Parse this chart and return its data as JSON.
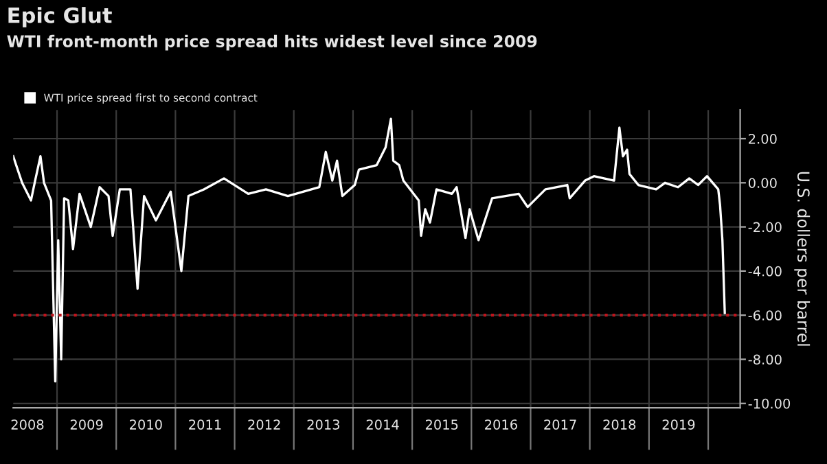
{
  "chart_data": {
    "type": "line",
    "title": "Epic Glut",
    "subtitle": "WTI front-month price spread hits widest level since 2009",
    "ylabel": "U.S. dollers per barrel",
    "x": [
      2008.26,
      2008.41,
      2008.56,
      2008.63,
      2008.72,
      2008.78,
      2008.9,
      2008.97,
      2009.02,
      2009.07,
      2009.12,
      2009.19,
      2009.27,
      2009.38,
      2009.57,
      2009.72,
      2009.87,
      2009.94,
      2010.06,
      2010.24,
      2010.36,
      2010.47,
      2010.67,
      2010.92,
      2011.1,
      2011.22,
      2011.48,
      2011.82,
      2012.23,
      2012.53,
      2012.9,
      2013.43,
      2013.54,
      2013.65,
      2013.73,
      2013.82,
      2014.03,
      2014.1,
      2014.4,
      2014.55,
      2014.64,
      2014.68,
      2014.78,
      2014.85,
      2015.11,
      2015.15,
      2015.22,
      2015.3,
      2015.41,
      2015.67,
      2015.75,
      2015.9,
      2015.97,
      2016.12,
      2016.35,
      2016.8,
      2016.95,
      2017.25,
      2017.62,
      2017.66,
      2017.92,
      2018.07,
      2018.41,
      2018.5,
      2018.56,
      2018.63,
      2018.67,
      2018.82,
      2019.12,
      2019.27,
      2019.49,
      2019.68,
      2019.83,
      2019.98,
      2020.17,
      2020.2,
      2020.24,
      2020.28
    ],
    "series": [
      {
        "name": "WTI price spread first to second contract",
        "color": "#ffffff",
        "values": [
          1.2,
          0,
          -0.8,
          0.1,
          1.2,
          0,
          -0.8,
          -9.0,
          -2.6,
          -8.0,
          -0.7,
          -0.8,
          -3.0,
          -0.5,
          -2.0,
          -0.2,
          -0.6,
          -2.4,
          -0.3,
          -0.3,
          -4.8,
          -0.6,
          -1.7,
          -0.4,
          -4.0,
          -0.6,
          -0.3,
          0.2,
          -0.5,
          -0.3,
          -0.6,
          -0.2,
          1.4,
          0.1,
          1.0,
          -0.6,
          -0.1,
          0.6,
          0.8,
          1.6,
          2.9,
          1.0,
          0.8,
          0.1,
          -0.8,
          -2.4,
          -1.2,
          -1.8,
          -0.3,
          -0.5,
          -0.2,
          -2.5,
          -1.2,
          -2.6,
          -0.7,
          -0.5,
          -1.1,
          -0.3,
          -0.1,
          -0.7,
          0.1,
          0.3,
          0.1,
          2.5,
          1.2,
          1.5,
          0.4,
          -0.1,
          -0.3,
          0,
          -0.2,
          0.2,
          -0.1,
          0.3,
          -0.3,
          -1.0,
          -2.6,
          -5.9
        ]
      }
    ],
    "xlim": [
      2008.26,
      2020.54
    ],
    "xticks": [
      {
        "value": 2008.5,
        "label": "2008"
      },
      {
        "value": 2009.5,
        "label": "2009"
      },
      {
        "value": 2010.5,
        "label": "2010"
      },
      {
        "value": 2011.5,
        "label": "2011"
      },
      {
        "value": 2012.5,
        "label": "2012"
      },
      {
        "value": 2013.5,
        "label": "2013"
      },
      {
        "value": 2014.5,
        "label": "2014"
      },
      {
        "value": 2015.5,
        "label": "2015"
      },
      {
        "value": 2016.5,
        "label": "2016"
      },
      {
        "value": 2017.5,
        "label": "2017"
      },
      {
        "value": 2018.5,
        "label": "2018"
      },
      {
        "value": 2019.5,
        "label": "2019"
      },
      {
        "value": 2009,
        "label": null
      },
      {
        "value": 2010,
        "label": null
      },
      {
        "value": 2011,
        "label": null
      },
      {
        "value": 2012,
        "label": null
      },
      {
        "value": 2013,
        "label": null
      },
      {
        "value": 2014,
        "label": null
      },
      {
        "value": 2015,
        "label": null
      },
      {
        "value": 2016,
        "label": null
      },
      {
        "value": 2017,
        "label": null
      },
      {
        "value": 2018,
        "label": null
      },
      {
        "value": 2019,
        "label": null
      },
      {
        "value": 2020,
        "label": null
      }
    ],
    "ylim": [
      -10.2,
      3.3
    ],
    "yticks": [
      {
        "value": 2,
        "label": "2.00"
      },
      {
        "value": 0,
        "label": "0.00"
      },
      {
        "value": -2,
        "label": "-2.00"
      },
      {
        "value": -4,
        "label": "-4.00"
      },
      {
        "value": -6,
        "label": "-6.00"
      },
      {
        "value": -8,
        "label": "-8.00"
      },
      {
        "value": -10,
        "label": "-10.00"
      }
    ],
    "ref_lines": [
      {
        "axis": "y",
        "value": -6,
        "color": "#c0141c",
        "line_style": "dotted"
      }
    ],
    "grid": true,
    "legend": "top left",
    "marker": "none",
    "line_style": "solid"
  }
}
